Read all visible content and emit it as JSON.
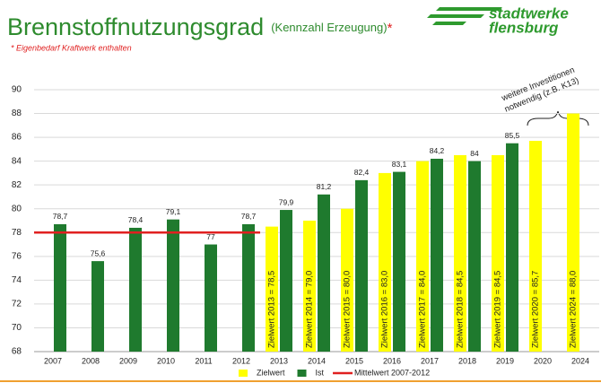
{
  "header": {
    "title": "Brennstoffnutzungsgrad",
    "subtitle": "(Kennzahl Erzeugung)",
    "asterisk": "*",
    "note": "* Eigenbedarf Kraftwerk enthalten"
  },
  "logo": {
    "line1": "stadtwerke",
    "line2": "flensburg"
  },
  "chart_data": {
    "type": "bar",
    "categories": [
      "2007",
      "2008",
      "2009",
      "2010",
      "2011",
      "2012",
      "2013",
      "2014",
      "2015",
      "2016",
      "2017",
      "2018",
      "2019",
      "2020",
      "2024"
    ],
    "series": [
      {
        "name": "Zielwert",
        "color": "#ffff00",
        "values": [
          null,
          null,
          null,
          null,
          null,
          null,
          78.5,
          79.0,
          80.0,
          83.0,
          84.0,
          84.5,
          84.5,
          85.7,
          88.0
        ],
        "value_labels": [
          null,
          null,
          null,
          null,
          null,
          null,
          "Zielwert 2013 = 78,5",
          "Zielwert 2014 = 79,0",
          "Zielwert 2015 = 80,0",
          "Zielwert 2016 = 83,0",
          "Zielwert 2017 = 84,0",
          "Zielwert 2018 = 84,5",
          "Zielwert 2019 = 84,5",
          "Zielwert 2020 = 85,7",
          "Zielwert 2024 = 88,0"
        ]
      },
      {
        "name": "Ist",
        "color": "#1f7a2e",
        "values": [
          78.7,
          75.6,
          78.4,
          79.1,
          77,
          78.7,
          79.9,
          81.2,
          82.4,
          83.1,
          84.2,
          84,
          85.5,
          null,
          null
        ],
        "value_labels": [
          "78,7",
          "75,6",
          "78,4",
          "79,1",
          "77",
          "78,7",
          "79,9",
          "81,2",
          "82,4",
          "83,1",
          "84,2",
          "84",
          "85,5",
          null,
          null
        ]
      },
      {
        "name": "Mittelwert 2007-2012",
        "type": "line",
        "color": "#e02020",
        "values": [
          78,
          78,
          78,
          78,
          78,
          78,
          null,
          null,
          null,
          null,
          null,
          null,
          null,
          null,
          null
        ]
      }
    ],
    "ylim": [
      68,
      90
    ],
    "yticks": [
      68,
      70,
      72,
      74,
      76,
      78,
      80,
      82,
      84,
      86,
      88,
      90
    ],
    "grid": true,
    "legend": "bottom",
    "annotation": [
      "weitere Investitionen",
      "notwendig (z.B. K13)"
    ]
  }
}
